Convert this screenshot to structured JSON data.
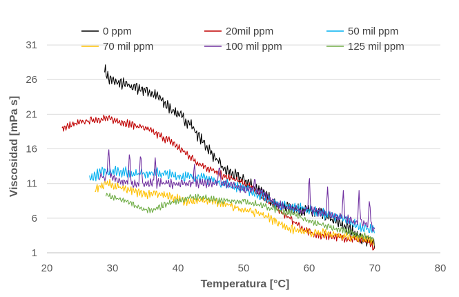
{
  "chart_data": {
    "type": "line",
    "title": "",
    "xlabel": "Temperatura  [°C]",
    "ylabel": "Viscosidad  [mPa s]",
    "xlim": [
      20,
      80
    ],
    "ylim": [
      1,
      33
    ],
    "x_ticks": [
      "20",
      "30",
      "40",
      "50",
      "60",
      "70",
      "80"
    ],
    "y_ticks": [
      "1",
      "6",
      "11",
      "16",
      "21",
      "26",
      "31"
    ],
    "x_tick_values": [
      20,
      30,
      40,
      50,
      60,
      70,
      80
    ],
    "y_tick_values": [
      1,
      6,
      11,
      16,
      21,
      26,
      31
    ],
    "grid": "horizontal",
    "legend_position": "top",
    "series": [
      {
        "name": "0 ppm",
        "color": "#000000",
        "noise": 0.9,
        "x": [
          28.8,
          29.5,
          31,
          33,
          35,
          37,
          38,
          40,
          42,
          43,
          45,
          47,
          49,
          51,
          53,
          55,
          57,
          60,
          62,
          64,
          66,
          68,
          70
        ],
        "y": [
          27.5,
          26,
          25.5,
          25,
          24.5,
          23.5,
          22.5,
          21,
          19.5,
          18,
          15.5,
          13,
          12,
          11,
          9.5,
          8,
          7.5,
          7,
          6.5,
          5.5,
          4.5,
          3,
          2.5
        ]
      },
      {
        "name": "20mil ppm",
        "color": "#c00000",
        "noise": 0.6,
        "x": [
          22.3,
          24,
          26,
          28,
          29,
          31,
          33,
          35,
          37,
          39,
          41,
          43,
          45,
          47,
          49,
          51,
          53,
          55,
          57,
          59,
          61,
          63,
          65,
          67,
          69,
          70
        ],
        "y": [
          19,
          19.5,
          20,
          20.3,
          20.4,
          20,
          19.5,
          19,
          18,
          17,
          15.5,
          14,
          13,
          12,
          11.5,
          10.5,
          9,
          7.5,
          6,
          4.5,
          3.5,
          3.5,
          3.2,
          3,
          2.5,
          1.5
        ]
      },
      {
        "name": "50 mil ppm",
        "color": "#00b0f0",
        "noise": 0.8,
        "x": [
          26.5,
          27,
          28,
          29,
          31,
          33,
          35,
          37,
          39,
          41,
          43,
          45,
          47,
          49,
          51,
          53,
          55,
          57,
          59,
          61,
          63,
          65,
          67,
          69,
          70
        ],
        "y": [
          11.5,
          12,
          12.5,
          12.8,
          12.8,
          12.5,
          12.5,
          12.5,
          12.2,
          12,
          12,
          11.5,
          11,
          10.5,
          10,
          9,
          8,
          7.5,
          7.5,
          7,
          6.5,
          6,
          5,
          4.5,
          4
        ]
      },
      {
        "name": "70 mil ppm",
        "color": "#ffc000",
        "noise": 0.7,
        "x": [
          27.3,
          28,
          29,
          31,
          33,
          35,
          37,
          39,
          41,
          43,
          45,
          47,
          49,
          51,
          53,
          55,
          57,
          59,
          61,
          63,
          65,
          67,
          69,
          70
        ],
        "y": [
          10,
          10.5,
          11,
          10.5,
          10,
          9.5,
          9.5,
          9,
          8.5,
          8.5,
          8.5,
          8,
          7.5,
          7,
          6.5,
          5.5,
          4.5,
          4,
          3.8,
          3.8,
          3.5,
          3.3,
          3,
          2.5
        ]
      },
      {
        "name": "100 mil ppm",
        "color": "#7030a0",
        "noise": 0.7,
        "x": [
          28,
          29,
          31,
          33,
          35,
          37,
          39,
          41,
          43,
          45,
          47,
          49,
          51,
          53,
          55,
          57,
          59,
          61,
          63,
          65,
          67,
          69,
          70
        ],
        "y": [
          12,
          12,
          11.5,
          11,
          11,
          11,
          11,
          11,
          11,
          11,
          11,
          10.5,
          10,
          9.5,
          8,
          7.5,
          7,
          7,
          6.5,
          6,
          5.5,
          5,
          4.5
        ],
        "spikes": [
          [
            29.4,
            16.5
          ],
          [
            32.6,
            15.8
          ],
          [
            34.3,
            16
          ],
          [
            36.5,
            15
          ],
          [
            42.5,
            14
          ],
          [
            46.3,
            14
          ],
          [
            51.7,
            12
          ],
          [
            60,
            12.5
          ],
          [
            62.8,
            10.5
          ],
          [
            65.2,
            10
          ],
          [
            67.6,
            10
          ],
          [
            69.2,
            9
          ]
        ]
      },
      {
        "name": "125 mil ppm",
        "color": "#70ad47",
        "noise": 0.5,
        "x": [
          29,
          30,
          32,
          34,
          36,
          38,
          40,
          42,
          44,
          46,
          48,
          50,
          52,
          54,
          56,
          58,
          60,
          62,
          64,
          66,
          68,
          70
        ],
        "y": [
          9.5,
          9,
          8.5,
          7.5,
          7,
          8,
          8.5,
          9,
          9,
          8.5,
          8.5,
          8.5,
          8,
          7.5,
          7,
          6.5,
          5.5,
          5,
          4.5,
          4,
          3.5,
          3
        ]
      }
    ]
  }
}
